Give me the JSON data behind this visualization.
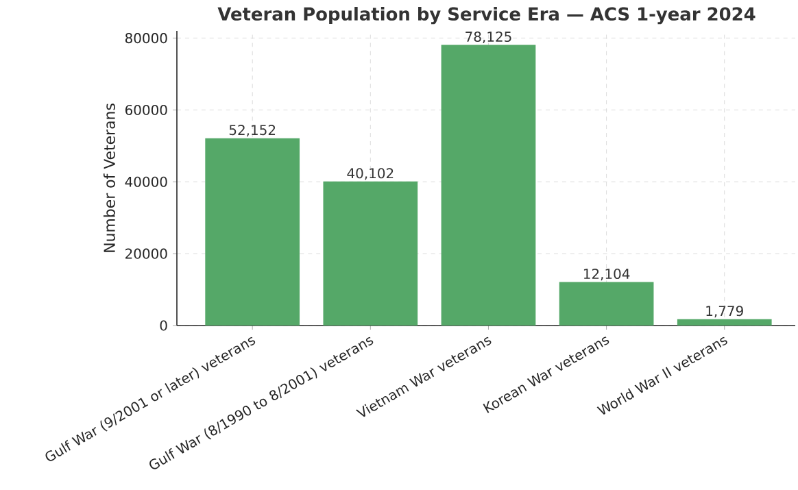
{
  "chart_data": {
    "type": "bar",
    "title": "Veteran Population by Service Era — ACS 1-year 2024",
    "ylabel": "Number of Veterans",
    "categories": [
      "Gulf War (9/2001 or later) veterans",
      "Gulf War (8/1990 to 8/2001) veterans",
      "Vietnam War veterans",
      "Korean War veterans",
      "World War II veterans"
    ],
    "values": [
      52152,
      40102,
      78125,
      12104,
      1779
    ],
    "value_labels": [
      "52,152",
      "40,102",
      "78,125",
      "12,104",
      "1,779"
    ],
    "color": "#55a868",
    "ylim": [
      0,
      82031
    ],
    "yticks": [
      0,
      20000,
      40000,
      60000,
      80000
    ],
    "grid": true
  }
}
